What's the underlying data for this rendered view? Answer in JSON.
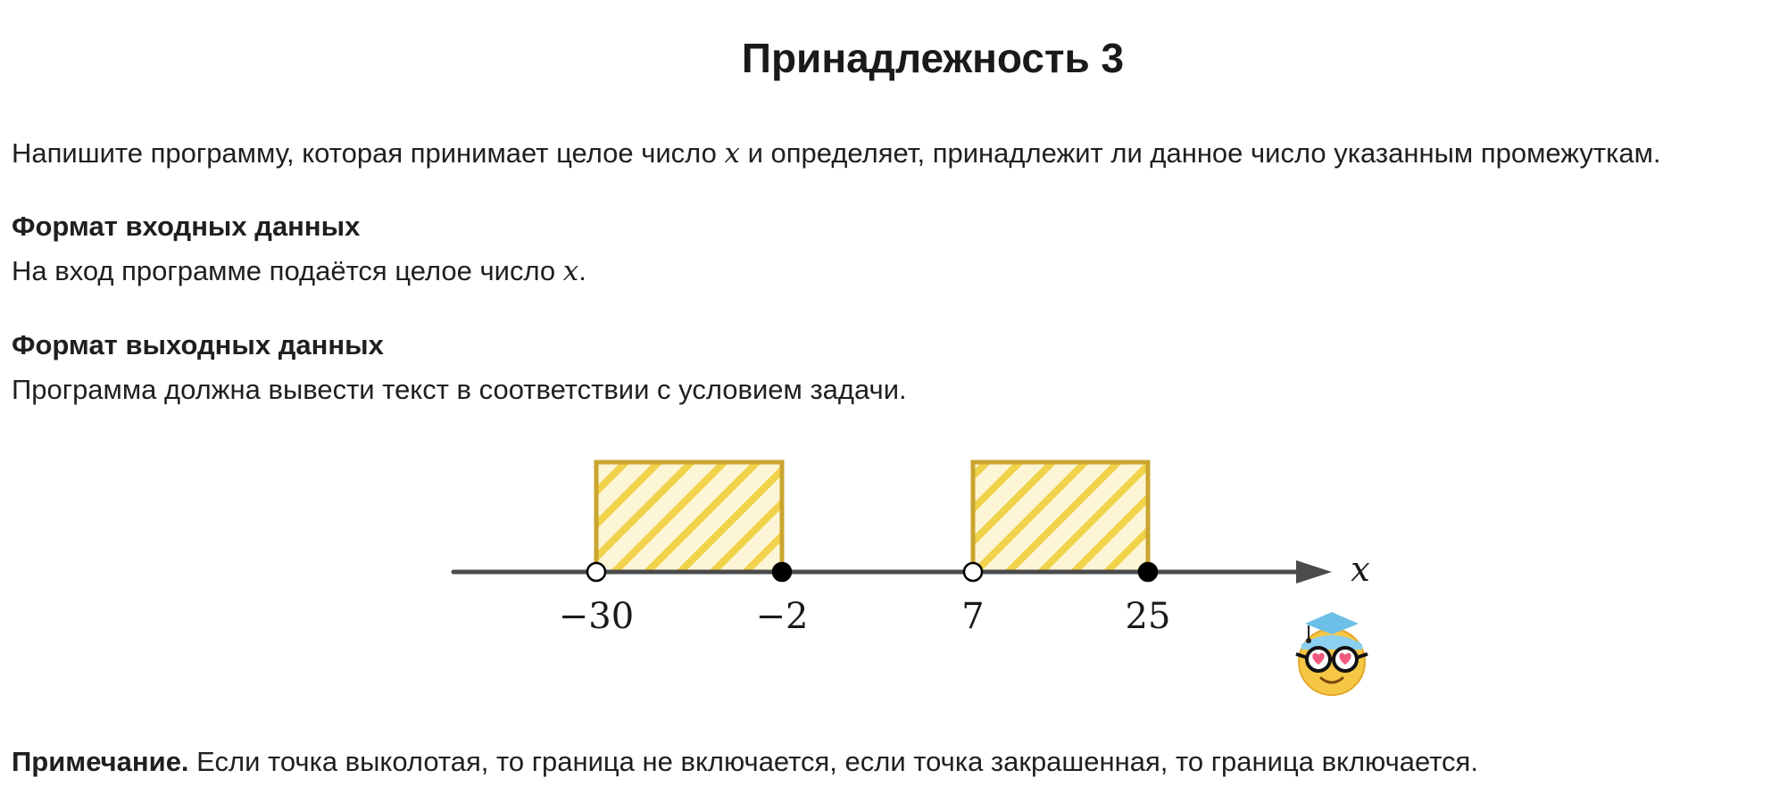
{
  "title": "Принадлежность 3",
  "intro": {
    "before": "Напишите программу, которая принимает целое число ",
    "var": "x",
    "after": " и определяет, принадлежит ли данное число указанным промежуткам."
  },
  "input_format": {
    "heading": "Формат входных данных",
    "before": "На вход программе подаётся целое число ",
    "var": "x",
    "after": "."
  },
  "output_format": {
    "heading": "Формат выходных данных",
    "text": "Программа должна вывести текст в соответствии с условием задачи."
  },
  "figure": {
    "axis_label": "x",
    "intervals": [
      {
        "left": -30,
        "right": -2,
        "left_point": "open",
        "right_point": "closed"
      },
      {
        "left": 7,
        "right": 25,
        "left_point": "open",
        "right_point": "closed"
      }
    ],
    "tick_labels": [
      "−30",
      "−2",
      "7",
      "25"
    ],
    "hatch_color": "#f1d24b",
    "border_color": "#c9a52f",
    "mascot_icon": "nerd-face-heart-eyes-graduation-cap"
  },
  "note": {
    "label": "Примечание.",
    "text": " Если точка выколотая, то граница не включается, если точка закрашенная, то граница включается."
  }
}
